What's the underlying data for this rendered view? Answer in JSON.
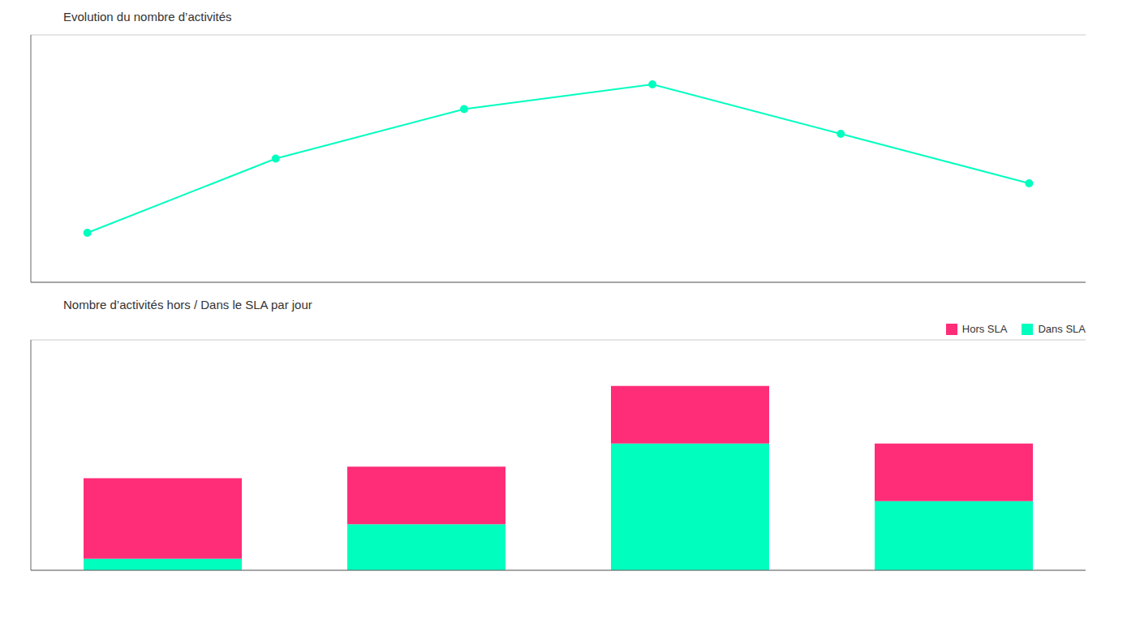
{
  "chart_data": [
    {
      "type": "line",
      "title": "Evolution du nombre d’activités",
      "x": [
        0,
        1,
        2,
        3,
        4,
        5
      ],
      "values": [
        2,
        5,
        7,
        8,
        6,
        4
      ],
      "color": "#00FFBF",
      "marker": "circle",
      "xlim": [
        -0.3,
        5.3
      ],
      "xticks": [
        0,
        1,
        2,
        3,
        4,
        5
      ],
      "ylim": [
        0,
        10
      ],
      "yticks": [
        0,
        2,
        4,
        6,
        8,
        10
      ],
      "grid": true,
      "tick_labels": false
    },
    {
      "type": "bar",
      "title": "Nombre d’activités hors / Dans le SLA par jour",
      "categories": [
        null,
        null,
        null,
        null
      ],
      "series": [
        {
          "name": "Dans SLA",
          "color": "#00FFBF",
          "values": [
            0.5,
            2.0,
            5.5,
            3.0
          ]
        },
        {
          "name": "Hors SLA",
          "color": "#FF2D78",
          "values": [
            3.5,
            2.5,
            2.5,
            2.5
          ]
        }
      ],
      "stacked": true,
      "ylim": [
        0,
        10
      ],
      "yticks": [
        0,
        2,
        4,
        6,
        8,
        10
      ],
      "grid": true,
      "legend": "upper right",
      "tick_labels": false
    }
  ]
}
